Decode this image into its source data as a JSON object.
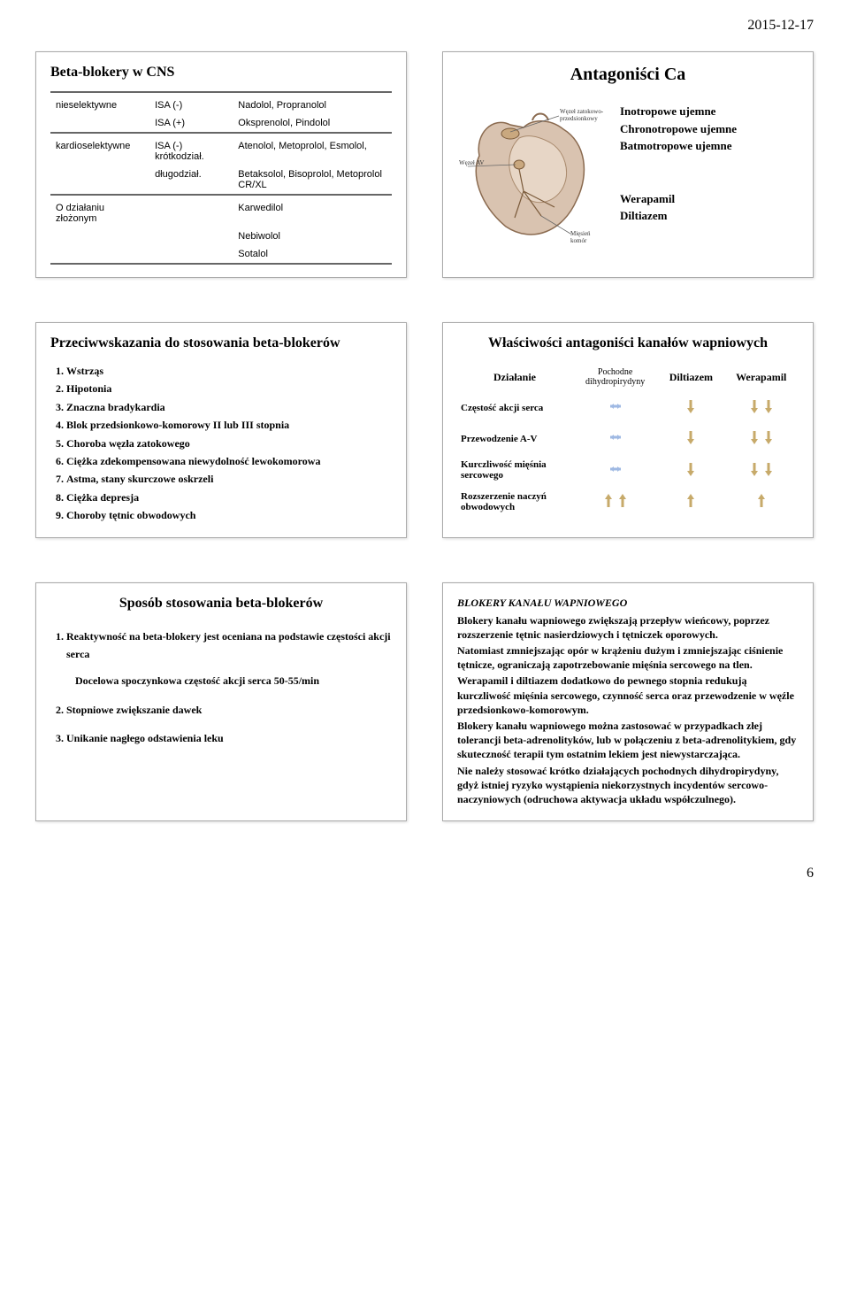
{
  "date": "2015-12-17",
  "page_number": "6",
  "panel1": {
    "title": "Beta-blokery w CNS",
    "rows": [
      {
        "c1": "nieselektywne",
        "c2": "ISA (-)",
        "c3": "Nadolol, Propranolol"
      },
      {
        "c1": "",
        "c2": "ISA (+)",
        "c3": "Oksprenolol, Pindolol"
      },
      {
        "c1": "kardioselektywne",
        "c2": "ISA (-)  krótkodział.",
        "c3": "Atenolol, Metoprolol, Esmolol,"
      },
      {
        "c1": "",
        "c2": "długodział.",
        "c3": "Betaksolol, Bisoprolol, Metoprolol CR/XL"
      },
      {
        "c1": "O działaniu złożonym",
        "c2": "",
        "c3": "Karwedilol"
      },
      {
        "c1": "",
        "c2": "",
        "c3": "Nebiwolol"
      },
      {
        "c1": "",
        "c2": "",
        "c3": "Sotalol"
      }
    ]
  },
  "panel2": {
    "title": "Antagoniści Ca",
    "labels": {
      "wezel_zatokowy": "Węzeł zatokowo-\nprzedsionkowy",
      "wezel_av": "Węzeł AV",
      "miesien": "Mięsień\nkomór"
    },
    "right_lines": [
      "Inotropowe ujemne",
      "Chronotropowe ujemne",
      "Batmotropowe ujemne"
    ],
    "right_bold": [
      "Werapamil",
      "Diltiazem"
    ]
  },
  "panel3": {
    "title": "Przeciwwskazania do stosowania beta-blokerów",
    "items": [
      "Wstrząs",
      "Hipotonia",
      "Znaczna bradykardia",
      "Blok przedsionkowo-komorowy II lub III stopnia",
      "Choroba węzła zatokowego",
      "Ciężka zdekompensowana niewydolność lewokomorowa",
      "Astma, stany skurczowe oskrzeli",
      "Ciężka depresja",
      "Choroby tętnic obwodowych"
    ]
  },
  "panel4": {
    "title": "Właściwości antagoniści kanałów wapniowych",
    "headers": [
      "Działanie",
      "Pochodne\ndihydropirydyny",
      "Diltiazem",
      "Werapamil"
    ],
    "rows": [
      {
        "label": "Częstość akcji serca",
        "dhp": {
          "dir": "flat",
          "color": "#9fb9e3",
          "count": 1
        },
        "dil": {
          "dir": "down",
          "color": "#c7aa6a",
          "count": 1
        },
        "wer": {
          "dir": "down",
          "color": "#c7aa6a",
          "count": 2
        }
      },
      {
        "label": "Przewodzenie A-V",
        "dhp": {
          "dir": "flat",
          "color": "#9fb9e3",
          "count": 1
        },
        "dil": {
          "dir": "down",
          "color": "#c7aa6a",
          "count": 1
        },
        "wer": {
          "dir": "down",
          "color": "#c7aa6a",
          "count": 2
        }
      },
      {
        "label": "Kurczliwość mięśnia\nsercowego",
        "dhp": {
          "dir": "flat",
          "color": "#9fb9e3",
          "count": 1
        },
        "dil": {
          "dir": "down",
          "color": "#c7aa6a",
          "count": 1
        },
        "wer": {
          "dir": "down",
          "color": "#c7aa6a",
          "count": 2
        }
      },
      {
        "label": "Rozszerzenie naczyń\nobwodowych",
        "dhp": {
          "dir": "up",
          "color": "#c7aa6a",
          "count": 2
        },
        "dil": {
          "dir": "up",
          "color": "#c7aa6a",
          "count": 1
        },
        "wer": {
          "dir": "up",
          "color": "#c7aa6a",
          "count": 1
        }
      }
    ]
  },
  "panel5": {
    "title": "Sposób stosowania beta-blokerów",
    "items": [
      "Reaktywność na beta-blokery jest oceniana na podstawie częstości akcji serca",
      "Stopniowe zwiększanie dawek",
      "Unikanie nagłego odstawienia leku"
    ],
    "subnote": "Docelowa spoczynkowa częstość akcji serca 50-55/min"
  },
  "panel6": {
    "title": "BLOKERY KANAŁU WAPNIOWEGO",
    "paras": [
      "Blokery kanału wapniowego zwiększają przepływ wieńcowy, poprzez rozszerzenie tętnic nasierdziowych i tętniczek oporowych.",
      "Natomiast zmniejszając opór w krążeniu dużym i zmniejszając ciśnienie tętnicze, ograniczają zapotrzebowanie mięśnia sercowego na tlen.",
      "Werapamil i diltiazem dodatkowo do pewnego stopnia redukują kurczliwość mięśnia sercowego, czynność serca oraz przewodzenie w węźle przedsionkowo-komorowym.",
      "Blokery kanału wapniowego można zastosować w przypadkach złej tolerancji beta-adrenolityków, lub w połączeniu z beta-adrenolitykiem, gdy skuteczność terapii tym ostatnim lekiem jest niewystarczająca.",
      "Nie należy stosować krótko działających pochodnych dihydropirydyny, gdyż istniej ryzyko wystąpienia niekorzystnych incydentów sercowo-naczyniowych (odruchowa aktywacja układu współczulnego)."
    ]
  },
  "colors": {
    "heart_fill": "#d9c3b0",
    "heart_stroke": "#8a6a4f",
    "box_border": "#aaaaaa",
    "arrow_blue": "#9fb9e3",
    "arrow_tan": "#c7aa6a"
  }
}
